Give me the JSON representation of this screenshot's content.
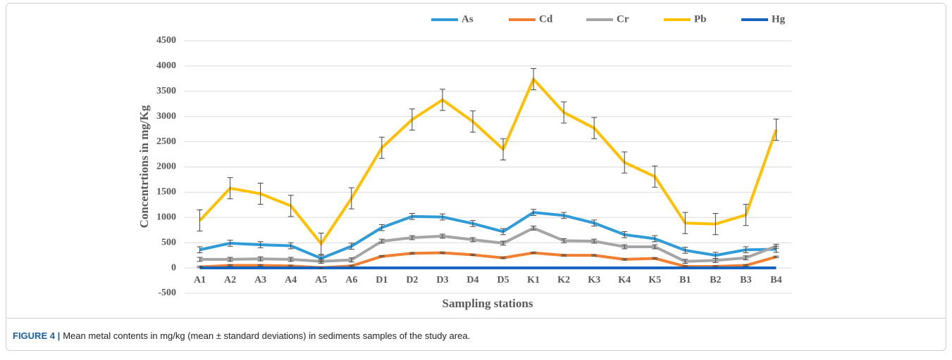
{
  "chart_data": {
    "type": "line",
    "y_label": "Concentrtions in mg/Kg",
    "x_label": "Sampling stations",
    "categories": [
      "A1",
      "A2",
      "A3",
      "A4",
      "A5",
      "A6",
      "D1",
      "D2",
      "D3",
      "D4",
      "D5",
      "K1",
      "K2",
      "K3",
      "K4",
      "K5",
      "B1",
      "B2",
      "B3",
      "B4"
    ],
    "series": [
      {
        "name": "As",
        "color": "#2f9bd7",
        "values": [
          360,
          490,
          460,
          440,
          190,
          430,
          800,
          1020,
          1010,
          880,
          720,
          1100,
          1040,
          890,
          660,
          580,
          350,
          250,
          360,
          370
        ],
        "errors": [
          60,
          60,
          60,
          60,
          60,
          60,
          60,
          60,
          60,
          60,
          60,
          60,
          60,
          60,
          60,
          60,
          60,
          60,
          60,
          60
        ]
      },
      {
        "name": "Cd",
        "color": "#f07f32",
        "values": [
          20,
          50,
          50,
          40,
          5,
          40,
          230,
          290,
          300,
          260,
          200,
          300,
          250,
          250,
          170,
          190,
          30,
          30,
          50,
          220
        ],
        "errors": [
          15,
          15,
          15,
          15,
          15,
          15,
          15,
          15,
          15,
          15,
          15,
          15,
          15,
          15,
          15,
          15,
          15,
          15,
          15,
          15
        ]
      },
      {
        "name": "Cr",
        "color": "#a5a5a5",
        "values": [
          170,
          170,
          180,
          170,
          130,
          160,
          530,
          600,
          630,
          560,
          490,
          790,
          540,
          530,
          420,
          420,
          130,
          150,
          200,
          430
        ],
        "errors": [
          40,
          40,
          40,
          40,
          40,
          40,
          40,
          40,
          40,
          40,
          40,
          40,
          40,
          40,
          40,
          40,
          40,
          40,
          40,
          40
        ]
      },
      {
        "name": "Pb",
        "color": "#ffc000",
        "values": [
          940,
          1580,
          1470,
          1230,
          480,
          1380,
          2380,
          2940,
          3330,
          2900,
          2350,
          3740,
          3080,
          2770,
          2090,
          1810,
          890,
          870,
          1050,
          2740
        ],
        "errors": [
          210,
          210,
          210,
          210,
          210,
          210,
          210,
          210,
          210,
          210,
          210,
          210,
          210,
          210,
          210,
          210,
          210,
          210,
          210,
          210
        ]
      },
      {
        "name": "Hg",
        "color": "#1565c0",
        "values": [
          1,
          1,
          1,
          1,
          1,
          1,
          1,
          1,
          1,
          1,
          1,
          1,
          1,
          1,
          1,
          1,
          1,
          1,
          1,
          1
        ]
      }
    ],
    "ylim": [
      -500,
      4500
    ],
    "yticks": [
      -500,
      0,
      500,
      1000,
      1500,
      2000,
      2500,
      3000,
      3500,
      4000,
      4500
    ],
    "grid": true,
    "legend": "top"
  },
  "caption": {
    "label": "FIGURE 4 |",
    "text": "Mean metal contents in mg/kg (mean ± standard deviations) in sediments samples of the study area."
  }
}
